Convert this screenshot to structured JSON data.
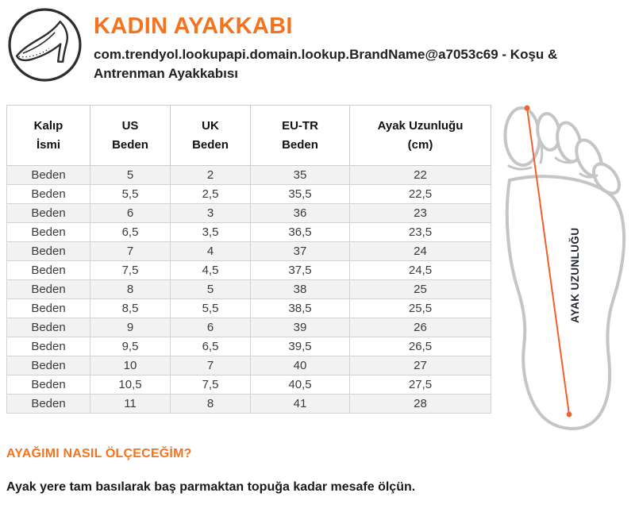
{
  "header": {
    "title": "KADIN AYAKKABI",
    "subtitle": "com.trendyol.lookupapi.domain.lookup.BrandName@a7053c69 - Koşu & Antrenman Ayakkabısı",
    "logo_icon": "high-heel-shoe-icon"
  },
  "size_table": {
    "columns": [
      "Kalıp\nİsmi",
      "US\nBeden",
      "UK\nBeden",
      "EU-TR\nBeden",
      "Ayak Uzunluğu\n(cm)"
    ],
    "rows": [
      [
        "Beden",
        "5",
        "2",
        "35",
        "22"
      ],
      [
        "Beden",
        "5,5",
        "2,5",
        "35,5",
        "22,5"
      ],
      [
        "Beden",
        "6",
        "3",
        "36",
        "23"
      ],
      [
        "Beden",
        "6,5",
        "3,5",
        "36,5",
        "23,5"
      ],
      [
        "Beden",
        "7",
        "4",
        "37",
        "24"
      ],
      [
        "Beden",
        "7,5",
        "4,5",
        "37,5",
        "24,5"
      ],
      [
        "Beden",
        "8",
        "5",
        "38",
        "25"
      ],
      [
        "Beden",
        "8,5",
        "5,5",
        "38,5",
        "25,5"
      ],
      [
        "Beden",
        "9",
        "6",
        "39",
        "26"
      ],
      [
        "Beden",
        "9,5",
        "6,5",
        "39,5",
        "26,5"
      ],
      [
        "Beden",
        "10",
        "7",
        "40",
        "27"
      ],
      [
        "Beden",
        "10,5",
        "7,5",
        "40,5",
        "27,5"
      ],
      [
        "Beden",
        "11",
        "8",
        "41",
        "28"
      ]
    ]
  },
  "foot_diagram": {
    "label": "AYAK UZUNLUĞU",
    "illustration": "foot-sole-outline-with-measurement-line"
  },
  "measure_section": {
    "heading": "AYAĞIMI NASIL ÖLÇECEĞİM?",
    "instruction": "Ayak yere tam basılarak baş parmaktan topuğa kadar mesafe ölçün."
  },
  "colors": {
    "accent_orange": "#f4731f",
    "measurement_line_orange": "#f1602d",
    "row_stripe_gray": "#f2f2f2",
    "table_border_gray": "#cdcdcd",
    "foot_outline_gray": "#c5c5c5",
    "label_dark_navy": "#232734",
    "icon_stroke_dark": "#2e2e2e"
  }
}
